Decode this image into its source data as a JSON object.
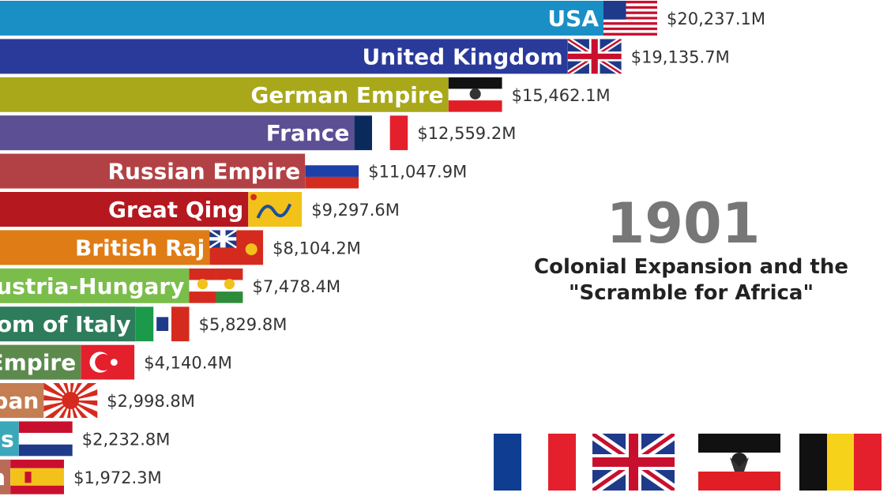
{
  "period": {
    "year": "1901",
    "caption_line1": "Colonial Expansion and the",
    "caption_line2": "\"Scramble for Africa\""
  },
  "chart_data": {
    "type": "bar",
    "orientation": "horizontal",
    "value_unit": "$M",
    "categories": [
      "USA",
      "United Kingdom",
      "German Empire",
      "France",
      "Russian Empire",
      "Great Qing",
      "British Raj",
      "Austria-Hungary",
      "Kingdom of Italy",
      "Ottoman Empire",
      "Empire of Japan",
      "Netherlands",
      "Spain"
    ],
    "values": [
      20237.1,
      19135.7,
      15462.1,
      12559.2,
      11047.9,
      9297.6,
      8104.2,
      7478.4,
      5829.8,
      4140.4,
      2998.8,
      2232.8,
      1972.3
    ],
    "value_labels": [
      "$20,237.1M",
      "$19,135.7M",
      "$15,462.1M",
      "$12,559.2M",
      "$11,047.9M",
      "$9,297.6M",
      "$8,104.2M",
      "$7,478.4M",
      "$5,829.8M",
      "$4,140.4M",
      "$2,998.8M",
      "$2,232.8M",
      "$1,972.3M"
    ],
    "colors": [
      "#1a8fc6",
      "#2a3a9a",
      "#a8a81a",
      "#5c4f93",
      "#b24145",
      "#b5181f",
      "#df7c16",
      "#7bbd4a",
      "#2d7c5c",
      "#5c8a4d",
      "#c57d52",
      "#3ba8ba",
      "#b86b56"
    ],
    "flags": [
      "usa-flag",
      "uk-flag",
      "german-empire-flag",
      "france-flag",
      "russia-flag",
      "qing-dragon-flag",
      "british-raj-flag",
      "austria-hungary-flag",
      "italy-flag",
      "ottoman-flag",
      "rising-sun-flag",
      "netherlands-flag",
      "spain-flag"
    ]
  },
  "legend_flags": [
    "france-flag",
    "uk-flag",
    "german-empire-flag",
    "belgium-flag"
  ]
}
